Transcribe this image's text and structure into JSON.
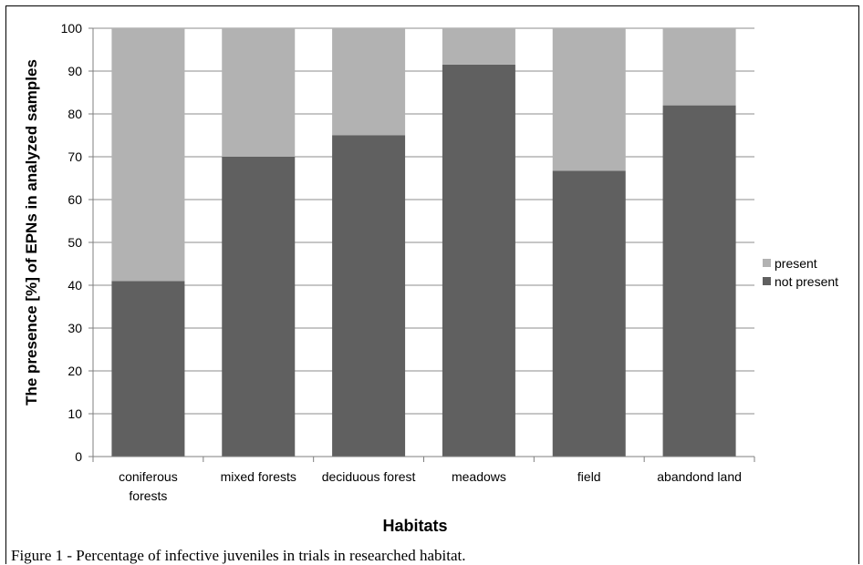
{
  "chart_data": {
    "type": "bar",
    "stacked": true,
    "categories": [
      [
        "coniferous",
        "forests"
      ],
      [
        "mixed forests"
      ],
      [
        "deciduous forest"
      ],
      [
        "meadows"
      ],
      [
        "field"
      ],
      [
        "abandond land"
      ]
    ],
    "series": [
      {
        "name": "not present",
        "values": [
          41,
          70,
          75,
          91.5,
          66.7,
          82
        ],
        "color": "#606060"
      },
      {
        "name": "present",
        "values": [
          59,
          30,
          25,
          8.5,
          33.3,
          18
        ],
        "color": "#b2b2b2"
      }
    ],
    "xlabel": "Habitats",
    "ylabel": "The presence [%] of EPNs in analyzed samples",
    "ylim": [
      0,
      100
    ],
    "yticks": [
      0,
      10,
      20,
      30,
      40,
      50,
      60,
      70,
      80,
      90,
      100
    ],
    "grid": true,
    "legend": "right"
  },
  "caption": "Figure 1 - Percentage of infective juveniles in trials in researched habitat."
}
